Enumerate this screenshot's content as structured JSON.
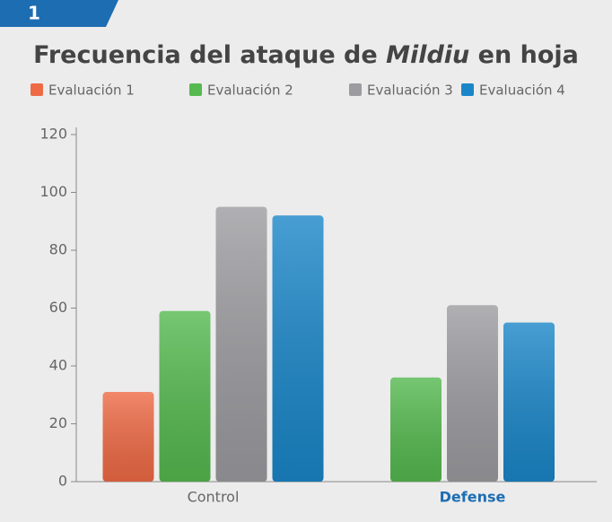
{
  "badge": "1",
  "chart_data": {
    "type": "bar",
    "title_parts": [
      "Frecuencia del ataque de ",
      "Mildiu",
      " en hoja"
    ],
    "categories": [
      "Control",
      "Defense"
    ],
    "series": [
      {
        "name": "Evaluación 1",
        "color": "#ee6a45",
        "values": [
          31,
          null
        ]
      },
      {
        "name": "Evaluación 2",
        "color": "#55b94f",
        "values": [
          59,
          36
        ]
      },
      {
        "name": "Evaluación 3",
        "color": "#9c9ca0",
        "values": [
          95,
          61
        ]
      },
      {
        "name": "Evaluación 4",
        "color": "#1a86c8",
        "values": [
          92,
          55
        ]
      }
    ],
    "ylim": [
      0,
      120
    ],
    "yticks": [
      0,
      20,
      40,
      60,
      80,
      100,
      120
    ],
    "grid": false
  }
}
